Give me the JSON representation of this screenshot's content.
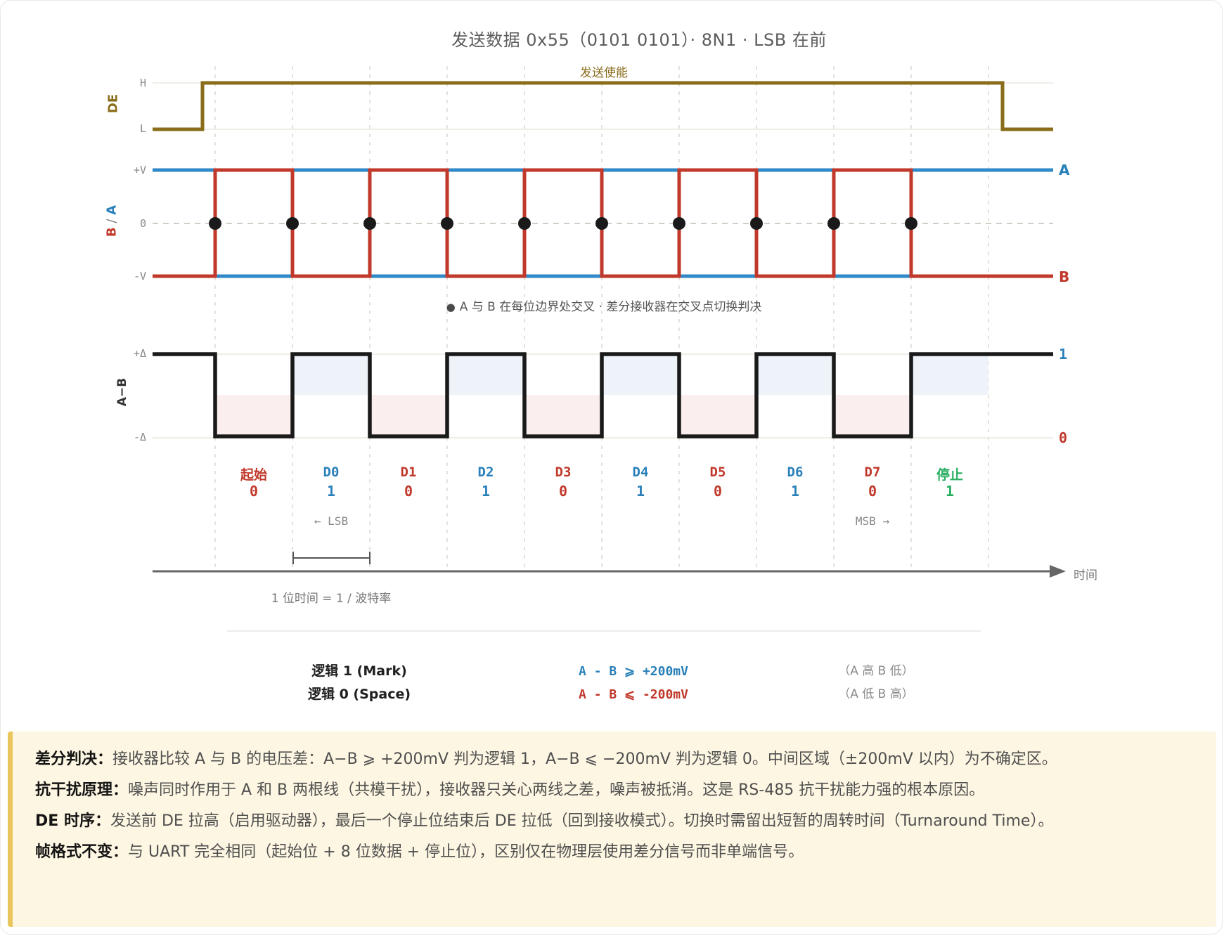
{
  "title": "发送数据 0x55（0101 0101）· 8N1 · LSB 在前",
  "colors": {
    "de_line": "#8a6d1b",
    "a_line": "#3089c8",
    "b_line": "#c0392b",
    "ab_line": "#1a1a1a",
    "one_text": "#2980b9",
    "zero_text": "#c0392b",
    "stop_text": "#27ae60",
    "fill_one": "#edf3f9",
    "fill_zero": "#fbeeee",
    "grid": "#f0ede7",
    "grid_dash": "#e5e2db",
    "zero_dash": "#d2cec6",
    "axis": "#666666",
    "note_bg": "#fdf6e2",
    "note_border": "#e9c65b"
  },
  "de": {
    "label": "DE",
    "high": "H",
    "low": "L",
    "annotation": "发送使能"
  },
  "ba": {
    "label_b": "B",
    "label_sep": " / ",
    "label_a": "A",
    "level_pos": "+V",
    "level_zero": "0",
    "level_neg": "-V",
    "right_a": "A",
    "right_b": "B",
    "caption_bullet": "●",
    "caption": "A 与 B 在每位边界处交叉 · 差分接收器在交叉点切换判决"
  },
  "ab": {
    "label": "A−B",
    "level_pos": "+Δ",
    "level_neg": "-Δ",
    "right_one": "1",
    "right_zero": "0"
  },
  "bits": [
    {
      "name": "起始",
      "value": "0",
      "role": "start"
    },
    {
      "name": "D0",
      "value": "1",
      "role": "data"
    },
    {
      "name": "D1",
      "value": "0",
      "role": "data"
    },
    {
      "name": "D2",
      "value": "1",
      "role": "data"
    },
    {
      "name": "D3",
      "value": "0",
      "role": "data"
    },
    {
      "name": "D4",
      "value": "1",
      "role": "data"
    },
    {
      "name": "D5",
      "value": "0",
      "role": "data"
    },
    {
      "name": "D6",
      "value": "1",
      "role": "data"
    },
    {
      "name": "D7",
      "value": "0",
      "role": "data"
    },
    {
      "name": "停止",
      "value": "1",
      "role": "stop"
    }
  ],
  "markers": {
    "lsb": "← LSB",
    "msb": "MSB →",
    "bit_time": "1 位时间 = 1 / 波特率",
    "time_axis": "时间"
  },
  "legend": {
    "rows": [
      {
        "name": "逻辑 1 (Mark)",
        "condition": "A - B ⩾ +200mV",
        "description": "（A 高 B 低）"
      },
      {
        "name": "逻辑 0 (Space)",
        "condition": "A - B ⩽ -200mV",
        "description": "（A 低 B 高）"
      }
    ]
  },
  "notes": [
    {
      "head": "差分判决：",
      "body": "接收器比较 A 与 B 的电压差：A−B ⩾ +200mV 判为逻辑 1，A−B ⩽ −200mV 判为逻辑 0。中间区域（±200mV 以内）为不确定区。"
    },
    {
      "head": "抗干扰原理：",
      "body": "噪声同时作用于 A 和 B 两根线（共模干扰），接收器只关心两线之差，噪声被抵消。这是 RS-485 抗干扰能力强的根本原因。"
    },
    {
      "head": "DE 时序：",
      "body": "发送前 DE 拉高（启用驱动器），最后一个停止位结束后 DE 拉低（回到接收模式）。切换时需留出短暂的周转时间（Turnaround Time）。"
    },
    {
      "head": "帧格式不变：",
      "body": "与 UART 完全相同（起始位 + 8 位数据 + 停止位），区别仅在物理层使用差分信号而非单端信号。"
    }
  ]
}
